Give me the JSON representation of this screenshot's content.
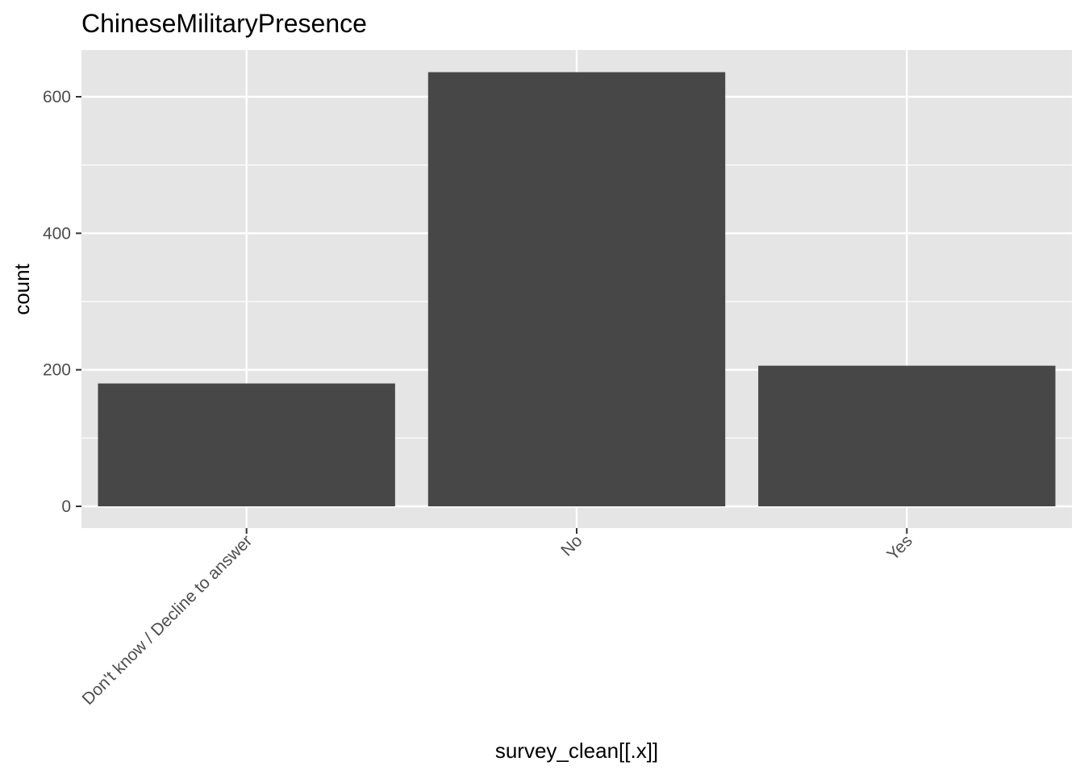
{
  "chart_data": {
    "type": "bar",
    "title": "ChineseMilitaryPresence",
    "xlabel": "survey_clean[[.x]]",
    "ylabel": "count",
    "categories": [
      "Don't know / Decline to answer",
      "No",
      "Yes"
    ],
    "values": [
      180,
      636,
      206
    ],
    "ylim": [
      0,
      600
    ],
    "yticks": [
      0,
      200,
      400,
      600
    ],
    "grid": true,
    "colors": {
      "panel": "#e5e5e5",
      "bar": "#474747",
      "grid": "#ffffff",
      "tick_text": "#4d4d4d"
    }
  }
}
